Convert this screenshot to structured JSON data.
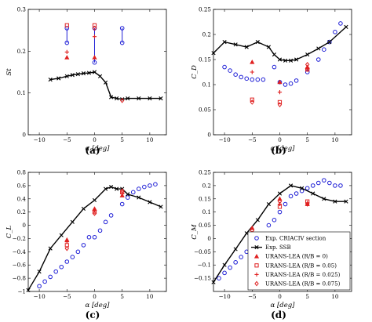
{
  "chart_data": [
    {
      "panel": "(a)",
      "type": "scatter",
      "xlabel": "α [deg]",
      "ylabel": "St",
      "xlim": [
        -12,
        13
      ],
      "ylim": [
        0,
        0.3
      ],
      "xticks": [
        -10,
        -5,
        0,
        5,
        10
      ],
      "yticks": [
        0,
        0.1,
        0.2,
        0.3
      ],
      "xtick_labels": [
        "−10",
        "−5",
        "0",
        "5",
        "10"
      ],
      "ytick_labels": [
        "0",
        "0.1",
        "0.2",
        "0.3"
      ],
      "series": [
        {
          "key": "crit",
          "connected_pairs": true,
          "x": [
            -5,
            -5,
            0,
            0,
            5,
            5
          ],
          "y": [
            0.255,
            0.22,
            0.255,
            0.173,
            0.255,
            0.22
          ]
        },
        {
          "key": "ssb",
          "line": true,
          "x": [
            -8,
            -6.5,
            -5,
            -4,
            -3,
            -2,
            -1,
            0,
            1,
            2,
            3,
            4,
            5,
            6,
            8,
            10,
            12
          ],
          "y": [
            0.132,
            0.135,
            0.14,
            0.143,
            0.145,
            0.147,
            0.148,
            0.15,
            0.14,
            0.125,
            0.09,
            0.087,
            0.085,
            0.087,
            0.087,
            0.087,
            0.087
          ]
        },
        {
          "key": "lea0",
          "x": [
            -5,
            0
          ],
          "y": [
            0.185,
            0.185
          ]
        },
        {
          "key": "lea005",
          "x": [
            -5,
            0
          ],
          "y": [
            0.262,
            0.262
          ]
        },
        {
          "key": "lea0025",
          "x": [
            -5,
            0
          ],
          "y": [
            0.198,
            0.235
          ]
        },
        {
          "key": "lea0075",
          "x": [
            0,
            5
          ],
          "y": [
            0.255,
            0.082
          ]
        }
      ]
    },
    {
      "panel": "(b)",
      "type": "scatter",
      "xlabel": "α [deg]",
      "ylabel": "C_D",
      "xlim": [
        -12,
        13
      ],
      "ylim": [
        0,
        0.25
      ],
      "xticks": [
        -10,
        -5,
        0,
        5,
        10
      ],
      "yticks": [
        0,
        0.05,
        0.1,
        0.15,
        0.2,
        0.25
      ],
      "xtick_labels": [
        "−10",
        "−5",
        "0",
        "5",
        "10"
      ],
      "ytick_labels": [
        "0",
        "0.05",
        "0.1",
        "0.15",
        "0.2",
        "0.25"
      ],
      "series": [
        {
          "key": "crit",
          "x": [
            -10,
            -9,
            -8,
            -7,
            -6,
            -5,
            -4,
            -3,
            -1,
            0,
            1,
            2,
            3,
            5,
            7,
            8,
            9,
            10,
            11
          ],
          "y": [
            0.135,
            0.128,
            0.12,
            0.115,
            0.112,
            0.11,
            0.11,
            0.11,
            0.135,
            0.105,
            0.1,
            0.102,
            0.108,
            0.125,
            0.15,
            0.17,
            0.185,
            0.205,
            0.222
          ]
        },
        {
          "key": "ssb",
          "line": true,
          "x": [
            -12,
            -10,
            -8,
            -6,
            -4,
            -2,
            -1,
            0,
            1,
            2,
            3,
            5,
            7,
            9,
            12
          ],
          "y": [
            0.163,
            0.185,
            0.18,
            0.175,
            0.185,
            0.175,
            0.16,
            0.15,
            0.148,
            0.148,
            0.15,
            0.16,
            0.172,
            0.185,
            0.215
          ]
        },
        {
          "key": "lea0",
          "x": [
            -5,
            0,
            5
          ],
          "y": [
            0.145,
            0.105,
            0.135
          ]
        },
        {
          "key": "lea005",
          "x": [
            -5,
            0,
            5
          ],
          "y": [
            0.07,
            0.065,
            0.13
          ]
        },
        {
          "key": "lea0025",
          "x": [
            -5,
            0,
            5
          ],
          "y": [
            0.125,
            0.085,
            0.13
          ]
        },
        {
          "key": "lea0075",
          "x": [
            -5,
            0,
            5
          ],
          "y": [
            0.065,
            0.06,
            0.14
          ]
        }
      ]
    },
    {
      "panel": "(c)",
      "type": "scatter",
      "xlabel": "α [deg]",
      "ylabel": "C_L",
      "xlim": [
        -12,
        13
      ],
      "ylim": [
        -1,
        0.8
      ],
      "xticks": [
        -10,
        -5,
        0,
        5,
        10
      ],
      "yticks": [
        -1,
        -0.8,
        -0.6,
        -0.4,
        -0.2,
        0,
        0.2,
        0.4,
        0.6,
        0.8
      ],
      "xtick_labels": [
        "−10",
        "−5",
        "0",
        "5",
        "10"
      ],
      "ytick_labels": [
        "−1",
        "−0.8",
        "−0.6",
        "−0.4",
        "−0.2",
        "0",
        "0.2",
        "0.4",
        "0.6",
        "0.8"
      ],
      "series": [
        {
          "key": "crit",
          "x": [
            -10,
            -9,
            -8,
            -7,
            -6,
            -5,
            -4,
            -3,
            -2,
            -1,
            0,
            1,
            2,
            3,
            5,
            6,
            7,
            8,
            9,
            10,
            11
          ],
          "y": [
            -0.92,
            -0.85,
            -0.78,
            -0.7,
            -0.63,
            -0.55,
            -0.48,
            -0.4,
            -0.3,
            -0.18,
            -0.18,
            -0.08,
            0.05,
            0.15,
            0.32,
            0.42,
            0.5,
            0.55,
            0.58,
            0.6,
            0.62
          ]
        },
        {
          "key": "ssb",
          "line": true,
          "x": [
            -12,
            -10,
            -8,
            -6,
            -4,
            -2,
            0,
            2,
            3,
            4,
            5,
            6,
            8,
            10,
            12
          ],
          "y": [
            -0.98,
            -0.7,
            -0.35,
            -0.15,
            0.05,
            0.25,
            0.38,
            0.55,
            0.58,
            0.55,
            0.55,
            0.47,
            0.42,
            0.35,
            0.28
          ]
        },
        {
          "key": "lea0",
          "x": [
            -5,
            0,
            5
          ],
          "y": [
            -0.22,
            0.25,
            0.45
          ]
        },
        {
          "key": "lea005",
          "x": [
            -5,
            0,
            5
          ],
          "y": [
            -0.3,
            0.2,
            0.5
          ]
        },
        {
          "key": "lea0025",
          "x": [
            -5,
            0,
            5
          ],
          "y": [
            -0.25,
            0.22,
            0.48
          ]
        },
        {
          "key": "lea0075",
          "x": [
            -5,
            0,
            5
          ],
          "y": [
            -0.35,
            0.18,
            0.52
          ]
        }
      ]
    },
    {
      "panel": "(d)",
      "type": "scatter",
      "xlabel": "α [deg]",
      "ylabel": "C_M",
      "xlim": [
        -12,
        13
      ],
      "ylim": [
        -0.2,
        0.25
      ],
      "xticks": [
        -10,
        -5,
        0,
        5,
        10
      ],
      "yticks": [
        -0.15,
        -0.1,
        -0.05,
        0,
        0.05,
        0.1,
        0.15,
        0.2,
        0.25
      ],
      "xtick_labels": [
        "−10",
        "−5",
        "0",
        "5",
        "10"
      ],
      "ytick_labels": [
        "−0.15",
        "−0.1",
        "−0.05",
        "0",
        "0.05",
        "0.1",
        "0.15",
        "0.2",
        "0.25"
      ],
      "series": [
        {
          "key": "crit",
          "x": [
            -11,
            -10,
            -9,
            -8,
            -7,
            -6,
            -5,
            -4,
            -3,
            -2,
            -1,
            0,
            1,
            2,
            3,
            4,
            5,
            6,
            7,
            8,
            9,
            10,
            11
          ],
          "y": [
            -0.15,
            -0.13,
            -0.11,
            -0.09,
            -0.07,
            -0.05,
            -0.03,
            -0.02,
            0.0,
            0.05,
            0.07,
            0.1,
            0.13,
            0.16,
            0.17,
            0.18,
            0.19,
            0.2,
            0.21,
            0.22,
            0.21,
            0.2,
            0.2
          ]
        },
        {
          "key": "ssb",
          "line": true,
          "x": [
            -12,
            -10,
            -8,
            -6,
            -4,
            -2,
            0,
            2,
            4,
            6,
            8,
            10,
            12
          ],
          "y": [
            -0.165,
            -0.1,
            -0.04,
            0.02,
            0.07,
            0.13,
            0.17,
            0.2,
            0.19,
            0.17,
            0.15,
            0.14,
            0.14
          ]
        },
        {
          "key": "lea0",
          "x": [
            -5,
            0,
            5
          ],
          "y": [
            0.04,
            0.15,
            0.13
          ]
        },
        {
          "key": "lea005",
          "x": [
            -5,
            0,
            5
          ],
          "y": [
            0.0,
            0.12,
            0.14
          ]
        },
        {
          "key": "lea0025",
          "x": [
            -5,
            0,
            5
          ],
          "y": [
            0.02,
            0.13,
            0.135
          ]
        },
        {
          "key": "lea0075",
          "x": [
            -5,
            0,
            5
          ],
          "y": [
            0.03,
            0.14,
            0.13
          ]
        }
      ]
    }
  ],
  "legend": {
    "placement": "lower-right of panel (d)",
    "entries": [
      {
        "key": "crit",
        "label": "Exp. CRIACIV section",
        "color": "#1f1fd6",
        "marker": "circle"
      },
      {
        "key": "ssb",
        "label": "Exp. SSB",
        "color": "#000000",
        "marker": "x-line"
      },
      {
        "key": "lea0",
        "label": "URANS-LEA (R/B = 0)",
        "color": "#e02020",
        "marker": "triangle"
      },
      {
        "key": "lea005",
        "label": "URANS-LEA (R/B = 0.05)",
        "color": "#e02020",
        "marker": "square"
      },
      {
        "key": "lea0025",
        "label": "URANS-LEA (R/B = 0.025)",
        "color": "#e02020",
        "marker": "plus"
      },
      {
        "key": "lea0075",
        "label": "URANS-LEA (R/B = 0.075)",
        "color": "#e02020",
        "marker": "diamond"
      }
    ]
  },
  "captions": [
    "(a)",
    "(b)",
    "(c)",
    "(d)"
  ],
  "colors": {
    "blue": "#1f1fd6",
    "red": "#e02020",
    "black": "#000000"
  }
}
